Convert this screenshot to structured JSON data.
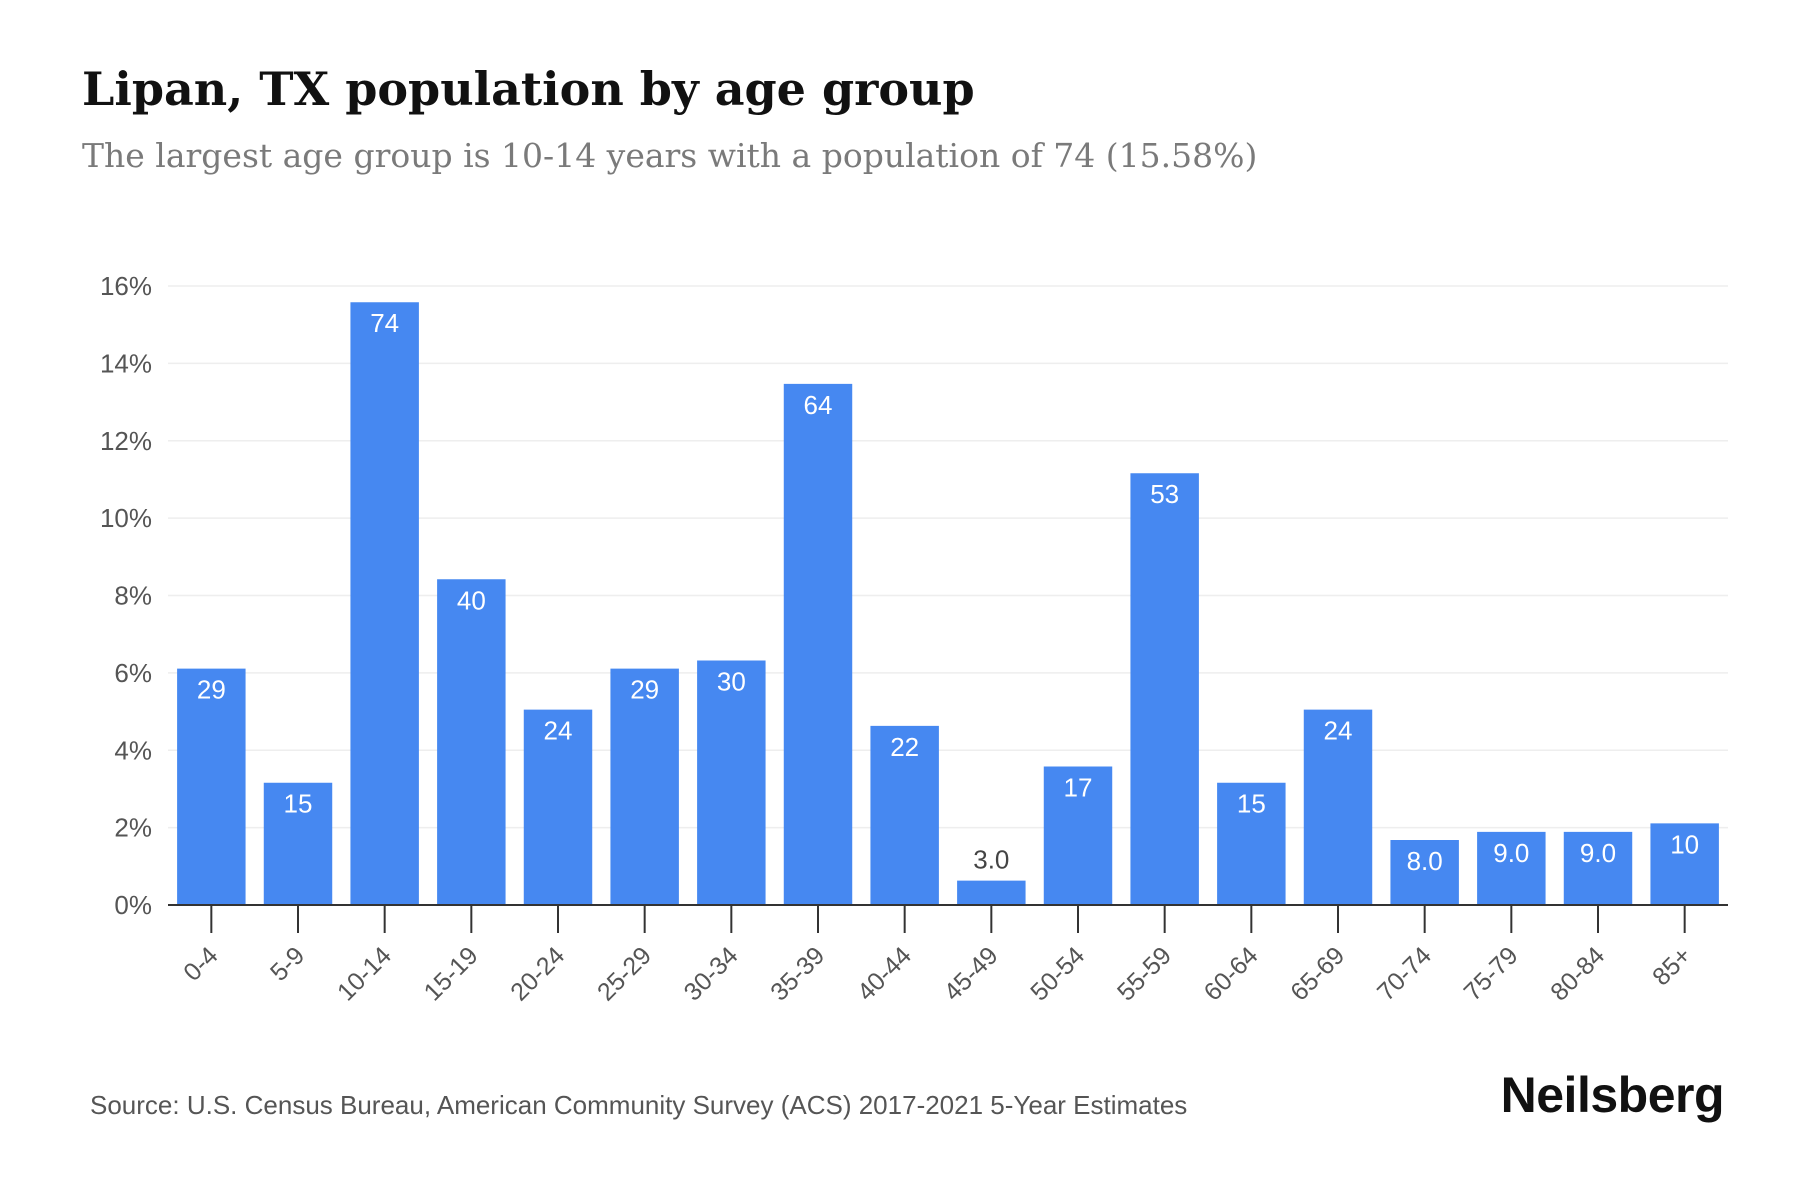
{
  "title": "Lipan, TX population by age group",
  "subtitle": "The largest age group is 10-14 years with a population of 74 (15.58%)",
  "source": "Source: U.S. Census Bureau, American Community Survey (ACS) 2017-2021 5-Year Estimates",
  "brand": "Neilsberg",
  "colors": {
    "bar": "#4688f1",
    "grid": "#eeeeee",
    "axis": "#333333",
    "tick_text": "#555555",
    "inside_label": "#ffffff",
    "outside_label": "#444444"
  },
  "chart_data": {
    "type": "bar",
    "title": "Lipan, TX population by age group",
    "categories": [
      "0-4",
      "5-9",
      "10-14",
      "15-19",
      "20-24",
      "25-29",
      "30-34",
      "35-39",
      "40-44",
      "45-49",
      "50-54",
      "55-59",
      "60-64",
      "65-69",
      "70-74",
      "75-79",
      "80-84",
      "85+"
    ],
    "values": [
      6.11,
      3.16,
      15.58,
      8.42,
      5.05,
      6.11,
      6.32,
      13.47,
      4.63,
      0.63,
      3.58,
      11.16,
      3.16,
      5.05,
      1.68,
      1.89,
      1.89,
      2.11
    ],
    "data_labels": [
      "29",
      "15",
      "74",
      "40",
      "24",
      "29",
      "30",
      "64",
      "22",
      "3.0",
      "17",
      "53",
      "15",
      "24",
      "8.0",
      "9.0",
      "9.0",
      "10"
    ],
    "yticks": [
      "0%",
      "2%",
      "4%",
      "6%",
      "8%",
      "10%",
      "12%",
      "14%",
      "16%"
    ],
    "ylim": [
      0,
      16
    ],
    "grid": true,
    "xlabel": "",
    "ylabel": ""
  }
}
